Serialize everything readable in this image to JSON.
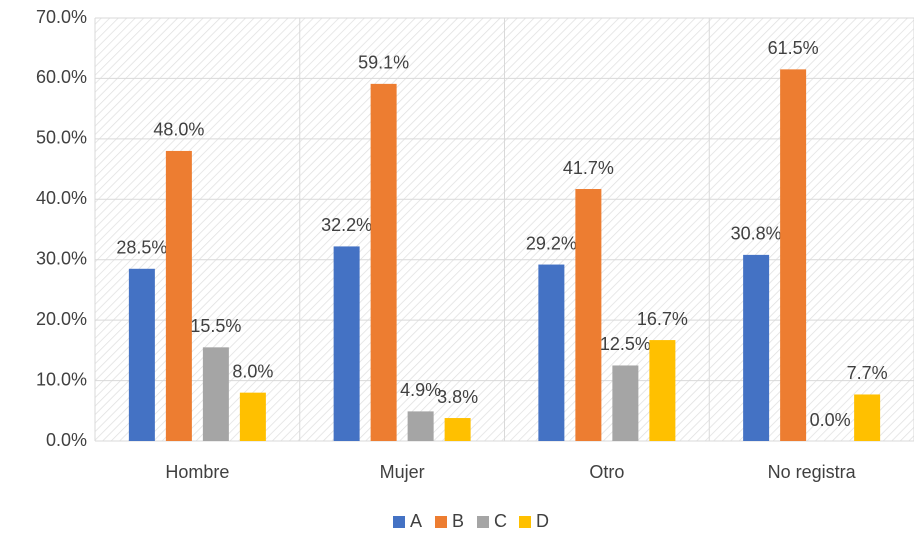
{
  "chart_data": {
    "type": "bar",
    "categories": [
      "Hombre",
      "Mujer",
      "Otro",
      "No registra"
    ],
    "series": [
      {
        "name": "A",
        "color": "#4472c4",
        "values": [
          28.5,
          32.2,
          29.2,
          30.8
        ],
        "value_labels": [
          "28.5%",
          "32.2%",
          "29.2%",
          "30.8%"
        ]
      },
      {
        "name": "B",
        "color": "#ed7d31",
        "values": [
          48.0,
          59.1,
          41.7,
          61.5
        ],
        "value_labels": [
          "48.0%",
          "59.1%",
          "41.7%",
          "61.5%"
        ]
      },
      {
        "name": "C",
        "color": "#a5a5a5",
        "values": [
          15.5,
          4.9,
          12.5,
          0.0
        ],
        "value_labels": [
          "15.5%",
          "4.9%",
          "12.5%",
          "0.0%"
        ]
      },
      {
        "name": "D",
        "color": "#ffc000",
        "values": [
          8.0,
          3.8,
          16.7,
          7.7
        ],
        "value_labels": [
          "8.0%",
          "3.8%",
          "16.7%",
          "7.7%"
        ]
      }
    ],
    "ylim": [
      0,
      70
    ],
    "yticks": [
      {
        "value": 0,
        "label": "0.0%"
      },
      {
        "value": 10,
        "label": "10.0%"
      },
      {
        "value": 20,
        "label": "20.0%"
      },
      {
        "value": 30,
        "label": "30.0%"
      },
      {
        "value": 40,
        "label": "40.0%"
      },
      {
        "value": 50,
        "label": "50.0%"
      },
      {
        "value": 60,
        "label": "60.0%"
      },
      {
        "value": 70,
        "label": "70.0%"
      }
    ],
    "grid": true,
    "legend": "bottom"
  }
}
